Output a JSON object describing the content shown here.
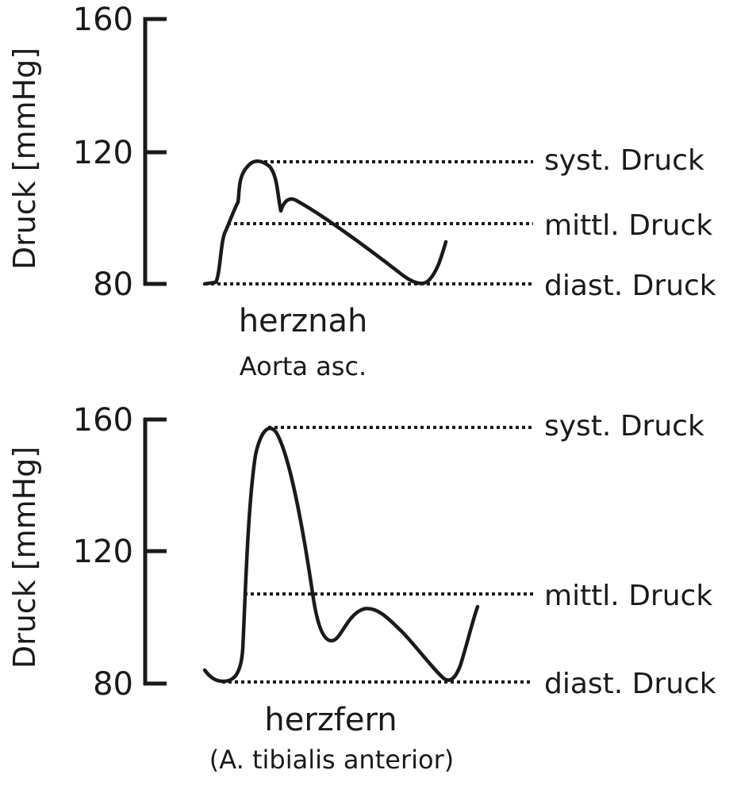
{
  "chart_data": [
    {
      "type": "line",
      "ylabel": "Druck [mmHg]",
      "ylim": [
        80,
        160
      ],
      "y_ticks": [
        "160",
        "120",
        "80"
      ],
      "reference_lines": [
        {
          "label": "syst. Druck",
          "value": 117
        },
        {
          "label": "mittl. Druck",
          "value": 98
        },
        {
          "label": "diast. Druck",
          "value": 80
        }
      ],
      "caption": "herznah",
      "subcaption": "Aorta asc."
    },
    {
      "type": "line",
      "ylabel": "Druck [mmHg]",
      "ylim": [
        80,
        160
      ],
      "y_ticks": [
        "160",
        "120",
        "80"
      ],
      "reference_lines": [
        {
          "label": "syst. Druck",
          "value": 158
        },
        {
          "label": "mittl. Druck",
          "value": 107
        },
        {
          "label": "diast. Druck",
          "value": 80
        }
      ],
      "caption": "herzfern",
      "subcaption": "(A. tibialis anterior)"
    }
  ]
}
